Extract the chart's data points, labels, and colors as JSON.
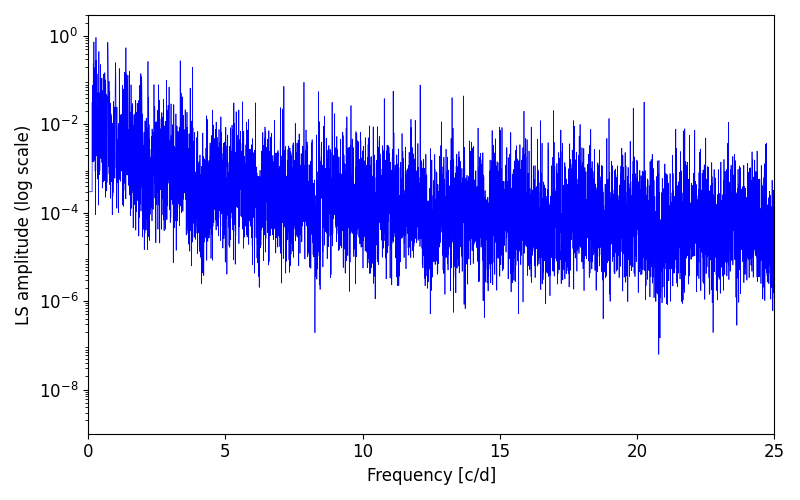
{
  "title": "",
  "xlabel": "Frequency [c/d]",
  "ylabel": "LS amplitude (log scale)",
  "xlim": [
    0,
    25
  ],
  "ylim": [
    1e-09,
    3
  ],
  "line_color": "#0000ff",
  "line_width": 0.5,
  "yscale": "log",
  "figsize": [
    8.0,
    5.0
  ],
  "dpi": 100,
  "freq_max": 25.0,
  "n_points": 8000,
  "seed": 17,
  "background_color": "#ffffff",
  "tick_labelsize": 12,
  "label_fontsize": 12,
  "yticks": [
    1e-08,
    1e-06,
    0.0001,
    0.01,
    1.0
  ],
  "xticks": [
    0,
    5,
    10,
    15,
    20,
    25
  ]
}
